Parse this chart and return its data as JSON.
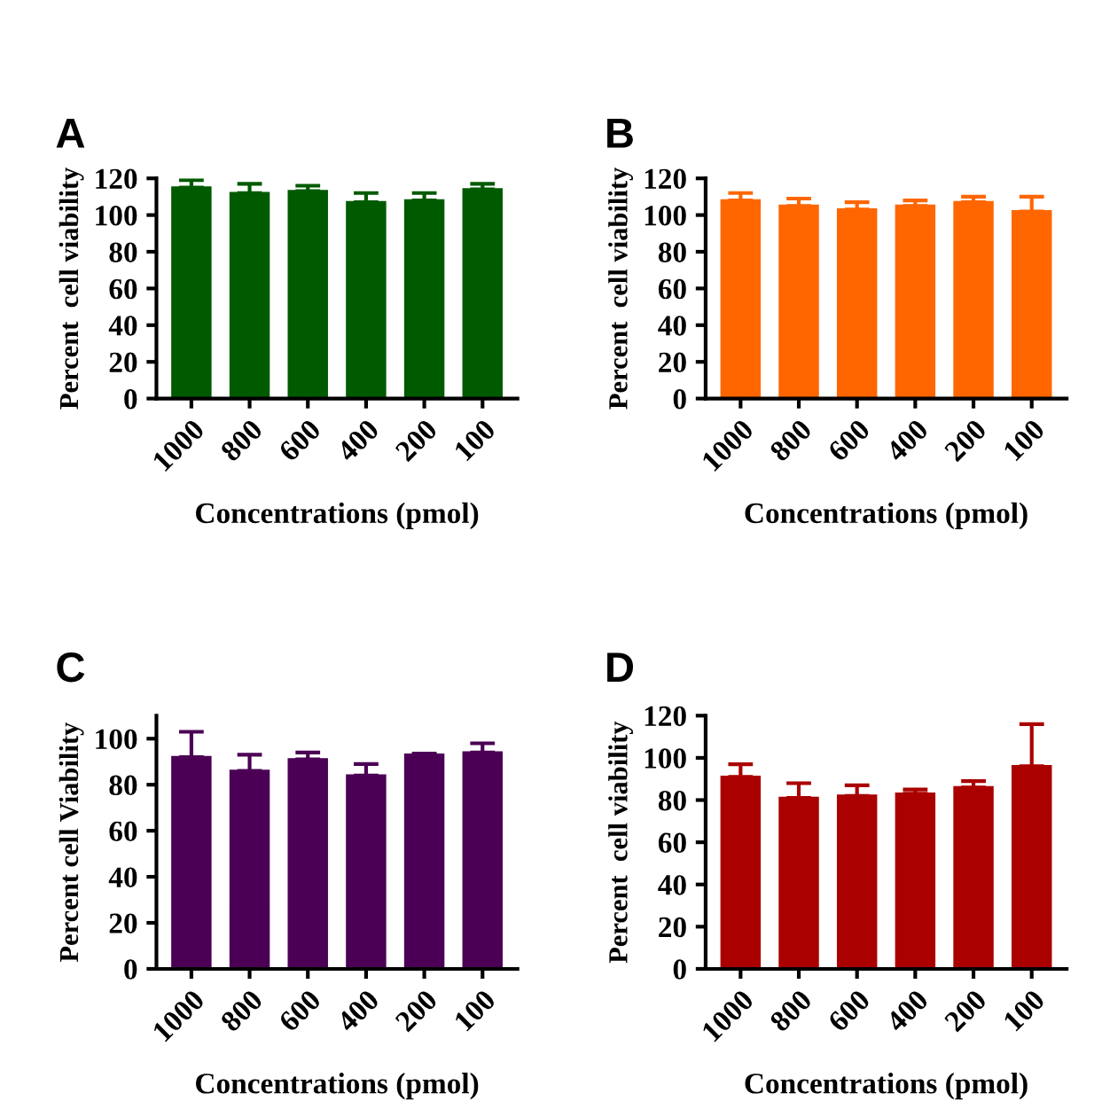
{
  "chart_data": [
    {
      "type": "bar",
      "title": "A",
      "xlabel": "Concentrations (pmol)",
      "ylabel": "Percent  cell viability",
      "categories": [
        "1000",
        "800",
        "600",
        "400",
        "200",
        "100"
      ],
      "series": [
        {
          "color": "#005a00",
          "values": [
            115,
            112,
            113,
            107,
            108,
            114
          ],
          "errors": [
            [
              115,
              119
            ],
            [
              112,
              117
            ],
            [
              113,
              116
            ],
            [
              107,
              112
            ],
            [
              108,
              112
            ],
            [
              114,
              117
            ]
          ]
        }
      ],
      "ylim": [
        0,
        120
      ],
      "yticks": [
        0,
        20,
        40,
        60,
        80,
        100,
        120
      ]
    },
    {
      "type": "bar",
      "title": "B",
      "xlabel": "Concentrations (pmol)",
      "ylabel": "Percent  cell viability",
      "categories": [
        "1000",
        "800",
        "600",
        "400",
        "200",
        "100"
      ],
      "series": [
        {
          "color": "#ff6600",
          "values": [
            108,
            105,
            103,
            105,
            107,
            102
          ],
          "errors": [
            [
              108,
              112
            ],
            [
              105,
              109
            ],
            [
              103,
              107
            ],
            [
              105,
              108
            ],
            [
              107,
              110
            ],
            [
              102,
              110
            ]
          ]
        }
      ],
      "ylim": [
        0,
        120
      ],
      "yticks": [
        0,
        20,
        40,
        60,
        80,
        100,
        120
      ]
    },
    {
      "type": "bar",
      "title": "C",
      "xlabel": "Concentrations (pmol)",
      "ylabel": "Percent cell Viability",
      "categories": [
        "1000",
        "800",
        "600",
        "400",
        "200",
        "100"
      ],
      "series": [
        {
          "color": "#4b0055",
          "values": [
            92,
            86,
            91,
            84,
            93,
            94
          ],
          "errors": [
            [
              92,
              103
            ],
            [
              86,
              93
            ],
            [
              91,
              94
            ],
            [
              84,
              89
            ],
            [
              93,
              93.5
            ],
            [
              94,
              98
            ]
          ]
        }
      ],
      "ylim": [
        0,
        110
      ],
      "yticks": [
        0,
        20,
        40,
        60,
        80,
        100
      ]
    },
    {
      "type": "bar",
      "title": "D",
      "xlabel": "Concentrations (pmol)",
      "ylabel": "Percent  cell viability",
      "categories": [
        "1000",
        "800",
        "600",
        "400",
        "200",
        "100"
      ],
      "series": [
        {
          "color": "#aa0000",
          "values": [
            91,
            81,
            82,
            83,
            86,
            96
          ],
          "errors": [
            [
              91,
              97
            ],
            [
              81,
              88
            ],
            [
              82,
              87
            ],
            [
              83,
              85
            ],
            [
              86,
              89
            ],
            [
              96,
              116
            ]
          ]
        }
      ],
      "ylim": [
        0,
        120
      ],
      "yticks": [
        0,
        20,
        40,
        60,
        80,
        100,
        120
      ]
    }
  ]
}
